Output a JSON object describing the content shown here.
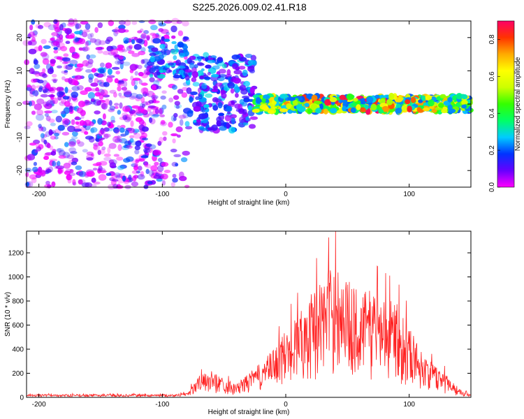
{
  "chart_data": [
    {
      "type": "heatmap",
      "title": "S225.2026.009.02.41.R18",
      "xlabel": "Height of straight line (km)",
      "ylabel": "Frequency (Hz)",
      "xlim": [
        -210,
        150
      ],
      "ylim": [
        -25,
        25
      ],
      "xticks": [
        -200,
        -100,
        0,
        100
      ],
      "yticks": [
        -20,
        -10,
        0,
        10,
        20
      ],
      "colorbar": {
        "label": "Normalized spectral amplitude",
        "range": [
          0.0,
          0.9
        ],
        "ticks": [
          0.0,
          0.2,
          0.4,
          0.6,
          0.8
        ],
        "colormap": [
          "#ff00ff",
          "#6600ff",
          "#0033ff",
          "#00ccff",
          "#00ff66",
          "#33ff00",
          "#ccff00",
          "#ffff00",
          "#ffaa00",
          "#ff3300",
          "#ff0066"
        ]
      },
      "regions": [
        {
          "name": "noise-scatter",
          "x": [
            -210,
            -80
          ],
          "freq": [
            -25,
            25
          ],
          "amplitude": [
            0.0,
            0.25
          ]
        },
        {
          "name": "blob-upper",
          "x": [
            -110,
            -80
          ],
          "freq": [
            8,
            20
          ],
          "amplitude": [
            0.1,
            0.3
          ]
        },
        {
          "name": "broad-band",
          "x": [
            -80,
            -25
          ],
          "freq": [
            -8,
            15
          ],
          "amplitude": [
            0.05,
            0.3
          ]
        },
        {
          "name": "narrow-band",
          "x": [
            -25,
            150
          ],
          "freq": [
            -3,
            3
          ],
          "amplitude": [
            0.2,
            0.9
          ]
        }
      ]
    },
    {
      "type": "line",
      "xlabel": "Height of straight line (km)",
      "ylabel": "SNR (10 * v/v)",
      "xlim": [
        -210,
        150
      ],
      "ylim": [
        0,
        1380
      ],
      "xticks": [
        -200,
        -100,
        0,
        100
      ],
      "yticks": [
        0,
        200,
        400,
        600,
        800,
        1000,
        1200
      ],
      "series": [
        {
          "name": "SNR",
          "color": "#ff2020",
          "envelope_x": [
            -210,
            -90,
            -80,
            -70,
            -60,
            -50,
            -40,
            -30,
            -20,
            -10,
            0,
            10,
            20,
            30,
            40,
            50,
            60,
            70,
            80,
            90,
            100,
            110,
            120,
            130,
            140,
            150
          ],
          "envelope_y": [
            25,
            25,
            40,
            180,
            220,
            160,
            110,
            200,
            290,
            400,
            560,
            700,
            850,
            1000,
            1130,
            980,
            880,
            900,
            830,
            780,
            600,
            380,
            270,
            200,
            80,
            20
          ]
        }
      ]
    }
  ]
}
